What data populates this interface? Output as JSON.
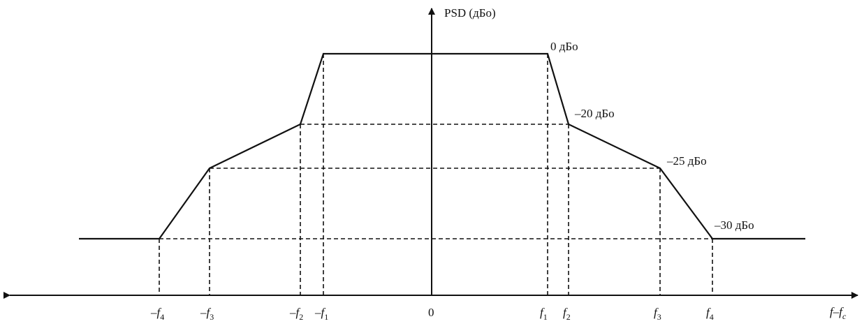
{
  "axis_labels": {
    "y": "PSD (дБо)",
    "x_main": "f–f",
    "x_sub": "c"
  },
  "level_labels": {
    "l0": "0 дБо",
    "l20": "–20 дБо",
    "l25": "–25 дБо",
    "l30": "–30 дБо"
  },
  "ticks": {
    "neg_f4": {
      "sign": "–",
      "base": "f",
      "sub": "4"
    },
    "neg_f3": {
      "sign": "–",
      "base": "f",
      "sub": "3"
    },
    "neg_f2": {
      "sign": "–",
      "base": "f",
      "sub": "2"
    },
    "neg_f1": {
      "sign": "–",
      "base": "f",
      "sub": "1"
    },
    "zero": "0",
    "f1": {
      "base": "f",
      "sub": "1"
    },
    "f2": {
      "base": "f",
      "sub": "2"
    },
    "f3": {
      "base": "f",
      "sub": "3"
    },
    "f4": {
      "base": "f",
      "sub": "4"
    }
  },
  "colors": {
    "line": "#111111",
    "background": "#ffffff"
  }
}
